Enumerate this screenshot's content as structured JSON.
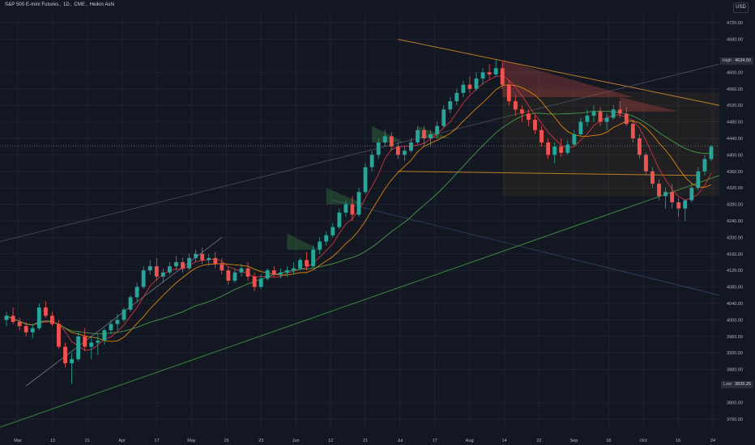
{
  "header": {
    "symbol": "S&P 500 E-mini Futures",
    "timeframe": "1D",
    "exchange": "CME",
    "chart_style": "Heikin Ashi"
  },
  "currency": "USD",
  "markers": {
    "high_label": "High",
    "high_value": "4634.50",
    "low_label": "Low",
    "low_value": "3839.25"
  },
  "colors": {
    "background": "#131722",
    "bull": "#26a69a",
    "bear": "#ef5350",
    "ma_fast": "#f23645",
    "ma_mid": "#ff9800",
    "ma_slow": "#4caf50",
    "channel": "#ffa726",
    "support": "#43a047"
  },
  "chart_data": {
    "type": "candlestick",
    "title": "S&P 500 E-mini Futures, 1D, CME, Heikin Ashi",
    "currency": "USD",
    "ylim": [
      3740,
      4740
    ],
    "y_ticks": [
      4720,
      4680,
      4600,
      4560,
      4520,
      4480,
      4440,
      4400,
      4360,
      4320,
      4280,
      4240,
      4200,
      4160,
      4120,
      4080,
      4040,
      4000,
      3960,
      3920,
      3880,
      3800,
      3760
    ],
    "x_ticks": [
      "Mar",
      "13",
      "21",
      "Apr",
      "17",
      "May",
      "15",
      "23",
      "Jun",
      "12",
      "21",
      "Jul",
      "17",
      "Aug",
      "14",
      "22",
      "Sep",
      "18",
      "Oct",
      "16",
      "24"
    ],
    "price_line": 4421.75,
    "high": 4634.5,
    "low": 3839.25,
    "candles": [
      [
        4000,
        4020,
        3985,
        4010
      ],
      [
        4010,
        4030,
        3990,
        3995
      ],
      [
        3995,
        4005,
        3975,
        3985
      ],
      [
        3985,
        3995,
        3960,
        3970
      ],
      [
        3970,
        3990,
        3955,
        3980
      ],
      [
        3980,
        4040,
        3975,
        4030
      ],
      [
        4030,
        4045,
        4005,
        4010
      ],
      [
        4010,
        4020,
        3985,
        3990
      ],
      [
        3990,
        4000,
        3930,
        3935
      ],
      [
        3935,
        3945,
        3885,
        3895
      ],
      [
        3895,
        3920,
        3845,
        3905
      ],
      [
        3905,
        3970,
        3900,
        3960
      ],
      [
        3960,
        3980,
        3925,
        3935
      ],
      [
        3935,
        3960,
        3905,
        3945
      ],
      [
        3945,
        3965,
        3915,
        3950
      ],
      [
        3950,
        3980,
        3940,
        3975
      ],
      [
        3975,
        4000,
        3965,
        3990
      ],
      [
        3990,
        4015,
        3975,
        4000
      ],
      [
        4000,
        4030,
        3995,
        4025
      ],
      [
        4025,
        4060,
        4020,
        4055
      ],
      [
        4055,
        4090,
        4045,
        4080
      ],
      [
        4080,
        4130,
        4075,
        4120
      ],
      [
        4120,
        4145,
        4110,
        4130
      ],
      [
        4130,
        4150,
        4095,
        4105
      ],
      [
        4105,
        4125,
        4090,
        4115
      ],
      [
        4115,
        4140,
        4110,
        4130
      ],
      [
        4130,
        4155,
        4120,
        4140
      ],
      [
        4140,
        4150,
        4115,
        4125
      ],
      [
        4125,
        4160,
        4120,
        4150
      ],
      [
        4150,
        4170,
        4140,
        4160
      ],
      [
        4160,
        4175,
        4135,
        4145
      ],
      [
        4145,
        4160,
        4130,
        4150
      ],
      [
        4150,
        4165,
        4125,
        4135
      ],
      [
        4135,
        4150,
        4110,
        4120
      ],
      [
        4120,
        4130,
        4085,
        4095
      ],
      [
        4095,
        4125,
        4090,
        4115
      ],
      [
        4115,
        4135,
        4105,
        4125
      ],
      [
        4125,
        4140,
        4095,
        4105
      ],
      [
        4105,
        4115,
        4070,
        4080
      ],
      [
        4080,
        4110,
        4075,
        4100
      ],
      [
        4100,
        4125,
        4095,
        4120
      ],
      [
        4120,
        4130,
        4105,
        4110
      ],
      [
        4110,
        4125,
        4100,
        4115
      ],
      [
        4115,
        4130,
        4105,
        4120
      ],
      [
        4120,
        4140,
        4110,
        4125
      ],
      [
        4125,
        4150,
        4120,
        4145
      ],
      [
        4145,
        4165,
        4120,
        4130
      ],
      [
        4130,
        4180,
        4125,
        4170
      ],
      [
        4170,
        4200,
        4160,
        4190
      ],
      [
        4190,
        4215,
        4180,
        4205
      ],
      [
        4205,
        4235,
        4200,
        4225
      ],
      [
        4225,
        4270,
        4220,
        4260
      ],
      [
        4260,
        4290,
        4250,
        4280
      ],
      [
        4280,
        4300,
        4240,
        4255
      ],
      [
        4255,
        4320,
        4250,
        4310
      ],
      [
        4310,
        4380,
        4305,
        4370
      ],
      [
        4370,
        4410,
        4360,
        4400
      ],
      [
        4400,
        4440,
        4390,
        4430
      ],
      [
        4430,
        4460,
        4420,
        4445
      ],
      [
        4445,
        4455,
        4410,
        4420
      ],
      [
        4420,
        4430,
        4390,
        4400
      ],
      [
        4400,
        4420,
        4385,
        4410
      ],
      [
        4410,
        4440,
        4405,
        4430
      ],
      [
        4430,
        4470,
        4425,
        4460
      ],
      [
        4460,
        4470,
        4420,
        4440
      ],
      [
        4440,
        4460,
        4420,
        4450
      ],
      [
        4450,
        4480,
        4440,
        4470
      ],
      [
        4470,
        4520,
        4465,
        4510
      ],
      [
        4510,
        4540,
        4500,
        4530
      ],
      [
        4530,
        4560,
        4520,
        4550
      ],
      [
        4550,
        4580,
        4540,
        4570
      ],
      [
        4570,
        4590,
        4550,
        4560
      ],
      [
        4560,
        4600,
        4555,
        4585
      ],
      [
        4585,
        4610,
        4570,
        4600
      ],
      [
        4600,
        4620,
        4585,
        4595
      ],
      [
        4595,
        4630,
        4590,
        4610
      ],
      [
        4610,
        4625,
        4560,
        4570
      ],
      [
        4570,
        4580,
        4520,
        4530
      ],
      [
        4530,
        4545,
        4495,
        4510
      ],
      [
        4510,
        4520,
        4480,
        4500
      ],
      [
        4500,
        4510,
        4470,
        4485
      ],
      [
        4485,
        4495,
        4450,
        4460
      ],
      [
        4460,
        4470,
        4420,
        4430
      ],
      [
        4430,
        4440,
        4390,
        4400
      ],
      [
        4400,
        4430,
        4380,
        4420
      ],
      [
        4420,
        4440,
        4395,
        4405
      ],
      [
        4405,
        4435,
        4400,
        4425
      ],
      [
        4425,
        4460,
        4420,
        4450
      ],
      [
        4450,
        4490,
        4445,
        4480
      ],
      [
        4480,
        4510,
        4470,
        4495
      ],
      [
        4495,
        4520,
        4480,
        4505
      ],
      [
        4505,
        4515,
        4470,
        4480
      ],
      [
        4480,
        4500,
        4460,
        4490
      ],
      [
        4490,
        4520,
        4485,
        4510
      ],
      [
        4510,
        4530,
        4490,
        4500
      ],
      [
        4500,
        4515,
        4470,
        4475
      ],
      [
        4475,
        4485,
        4430,
        4440
      ],
      [
        4440,
        4450,
        4390,
        4400
      ],
      [
        4400,
        4405,
        4350,
        4360
      ],
      [
        4360,
        4370,
        4320,
        4330
      ],
      [
        4330,
        4340,
        4290,
        4300
      ],
      [
        4300,
        4320,
        4270,
        4310
      ],
      [
        4310,
        4330,
        4270,
        4285
      ],
      [
        4285,
        4295,
        4250,
        4270
      ],
      [
        4270,
        4280,
        4240,
        4290
      ],
      [
        4290,
        4330,
        4285,
        4320
      ],
      [
        4320,
        4370,
        4315,
        4360
      ],
      [
        4360,
        4400,
        4350,
        4390
      ],
      [
        4390,
        4425,
        4385,
        4420
      ]
    ]
  }
}
